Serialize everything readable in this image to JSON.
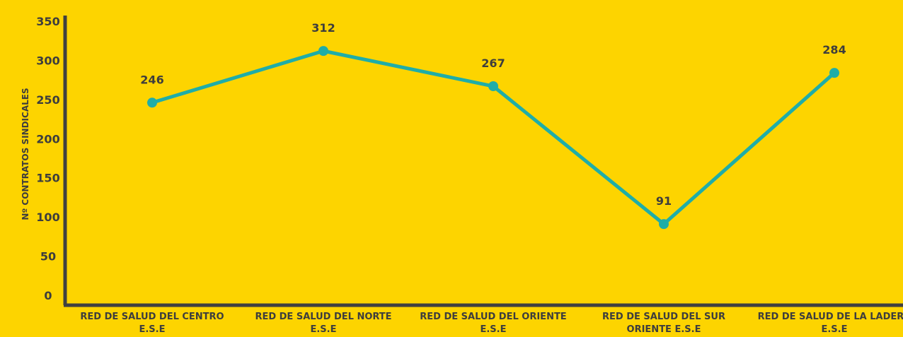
{
  "colors": {
    "background": "#FDD400",
    "line": "#1FADA8",
    "axis": "#404040",
    "text": "#3D3D3D"
  },
  "chart_data": {
    "type": "line",
    "ylabel": "Nº CONTRATOS SINDICALES",
    "ylim": [
      0,
      350
    ],
    "yticks": [
      0,
      50,
      100,
      150,
      200,
      250,
      300,
      350
    ],
    "grid": false,
    "categories": [
      [
        "RED DE SALUD DEL CENTRO",
        "E.S.E"
      ],
      [
        "RED DE SALUD DEL NORTE",
        "E.S.E"
      ],
      [
        "RED DE SALUD DEL ORIENTE",
        "E.S.E"
      ],
      [
        "RED DE SALUD DEL SUR",
        "ORIENTE E.S.E"
      ],
      [
        "RED DE SALUD DE LA LADERA",
        "E.S.E"
      ]
    ],
    "series": [
      {
        "values": [
          246,
          312,
          267,
          91,
          284
        ]
      }
    ]
  }
}
